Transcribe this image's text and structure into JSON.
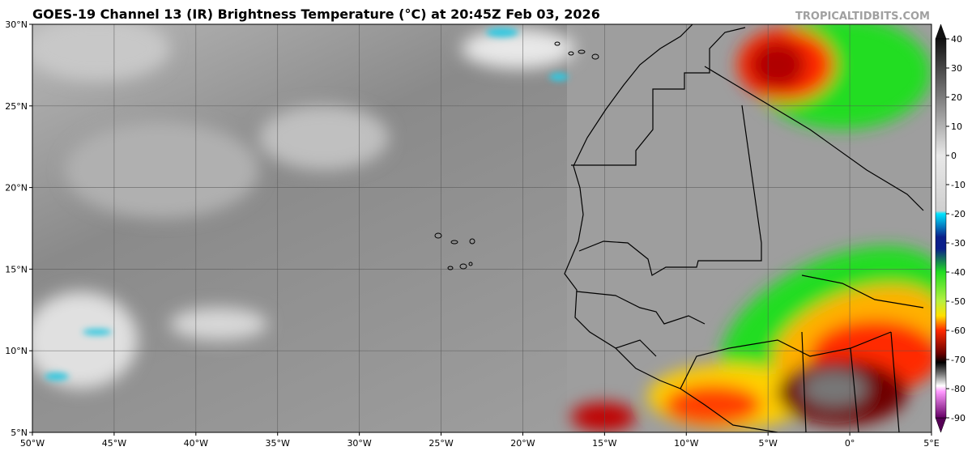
{
  "header": {
    "title": "GOES-19 Channel 13 (IR) Brightness Temperature (°C) at 20:45Z Feb 03, 2026",
    "source": "TROPICALTIDBITS.COM"
  },
  "map": {
    "lonlim": [
      -50,
      5
    ],
    "latlim": [
      5,
      30
    ],
    "lonticks": [
      {
        "value": -50,
        "label": "50°W"
      },
      {
        "value": -45,
        "label": "45°W"
      },
      {
        "value": -40,
        "label": "40°W"
      },
      {
        "value": -35,
        "label": "35°W"
      },
      {
        "value": -30,
        "label": "30°W"
      },
      {
        "value": -25,
        "label": "25°W"
      },
      {
        "value": -20,
        "label": "20°W"
      },
      {
        "value": -15,
        "label": "15°W"
      },
      {
        "value": -10,
        "label": "10°W"
      },
      {
        "value": -5,
        "label": "5°W"
      },
      {
        "value": 0,
        "label": "0°"
      },
      {
        "value": 5,
        "label": "5°E"
      }
    ],
    "latticks": [
      {
        "value": 30,
        "label": "30°N"
      },
      {
        "value": 25,
        "label": "25°N"
      },
      {
        "value": 20,
        "label": "20°N"
      },
      {
        "value": 15,
        "label": "15°N"
      },
      {
        "value": 10,
        "label": "10°N"
      },
      {
        "value": 5,
        "label": "5°N"
      }
    ],
    "grid": true
  },
  "colorbar": {
    "lim": [
      -90,
      40
    ],
    "ticks": [
      40,
      30,
      20,
      10,
      0,
      -10,
      -20,
      -30,
      -40,
      -50,
      -60,
      -70,
      -80,
      -90
    ],
    "stops": [
      {
        "value": 40,
        "color": "#111111"
      },
      {
        "value": 0,
        "color": "#e8e8e8"
      },
      {
        "value": -19,
        "color": "#cfcfcf"
      },
      {
        "value": -20,
        "color": "#00e5ff"
      },
      {
        "value": -28,
        "color": "#0a1f8a"
      },
      {
        "value": -32,
        "color": "#0a1f8a"
      },
      {
        "value": -40,
        "color": "#22dd22"
      },
      {
        "value": -50,
        "color": "#b8f040"
      },
      {
        "value": -55,
        "color": "#ffe000"
      },
      {
        "value": -60,
        "color": "#ff2a00"
      },
      {
        "value": -68,
        "color": "#6a0000"
      },
      {
        "value": -71,
        "color": "#000000"
      },
      {
        "value": -75,
        "color": "#777777"
      },
      {
        "value": -79,
        "color": "#ffffff"
      },
      {
        "value": -81,
        "color": "#ff99ff"
      },
      {
        "value": -90,
        "color": "#660066"
      }
    ]
  }
}
